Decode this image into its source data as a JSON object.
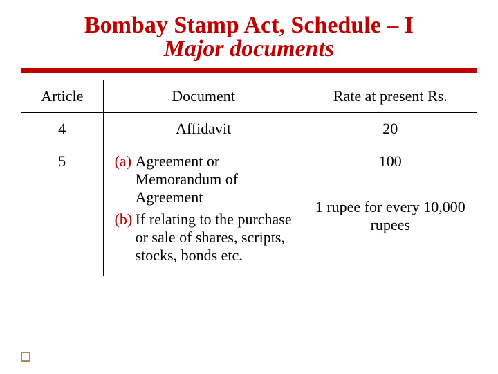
{
  "title": {
    "line1": "Bombay Stamp Act, Schedule – I",
    "line2": "Major documents"
  },
  "colors": {
    "accent": "#c00000",
    "text": "#000000",
    "background": "#ffffff",
    "footer_square_border": "#b08850"
  },
  "table": {
    "headers": {
      "article": "Article",
      "document": "Document",
      "rate": "Rate at present Rs."
    },
    "rows": [
      {
        "article": "4",
        "document_plain": "Affidavit",
        "rate_main": "20"
      },
      {
        "article": "5",
        "document_items": [
          {
            "marker": "(a)",
            "text": "Agreement or Memorandum of Agreement"
          },
          {
            "marker": "(b)",
            "text": "If relating to the purchase or sale of shares, scripts, stocks, bonds etc."
          }
        ],
        "rate_main": "100",
        "rate_sub": "1 rupee for every 10,000 rupees"
      }
    ]
  },
  "typography": {
    "title_fontsize": 34,
    "cell_fontsize": 22
  }
}
